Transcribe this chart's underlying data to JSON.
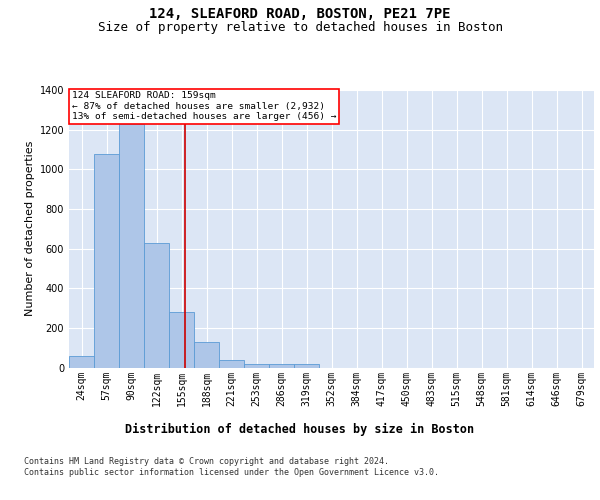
{
  "title_line1": "124, SLEAFORD ROAD, BOSTON, PE21 7PE",
  "title_line2": "Size of property relative to detached houses in Boston",
  "xlabel": "Distribution of detached houses by size in Boston",
  "ylabel": "Number of detached properties",
  "footnote": "Contains HM Land Registry data © Crown copyright and database right 2024.\nContains public sector information licensed under the Open Government Licence v3.0.",
  "bin_labels": [
    "24sqm",
    "57sqm",
    "90sqm",
    "122sqm",
    "155sqm",
    "188sqm",
    "221sqm",
    "253sqm",
    "286sqm",
    "319sqm",
    "352sqm",
    "384sqm",
    "417sqm",
    "450sqm",
    "483sqm",
    "515sqm",
    "548sqm",
    "581sqm",
    "614sqm",
    "646sqm",
    "679sqm"
  ],
  "bar_heights": [
    57,
    1075,
    1230,
    630,
    280,
    130,
    40,
    20,
    20,
    20,
    0,
    0,
    0,
    0,
    0,
    0,
    0,
    0,
    0,
    0,
    0
  ],
  "bar_color": "#aec6e8",
  "bar_edge_color": "#5b9bd5",
  "vline_color": "#cc0000",
  "vline_x_index": 4.12,
  "property_label": "124 SLEAFORD ROAD: 159sqm",
  "annotation_line1": "← 87% of detached houses are smaller (2,932)",
  "annotation_line2": "13% of semi-detached houses are larger (456) →",
  "ylim": [
    0,
    1400
  ],
  "yticks": [
    0,
    200,
    400,
    600,
    800,
    1000,
    1200,
    1400
  ],
  "plot_background": "#dce6f5",
  "grid_color": "#ffffff",
  "title_fontsize": 10,
  "subtitle_fontsize": 9,
  "tick_fontsize": 7,
  "label_fontsize": 8.5,
  "ylabel_fontsize": 8,
  "footnote_fontsize": 6
}
